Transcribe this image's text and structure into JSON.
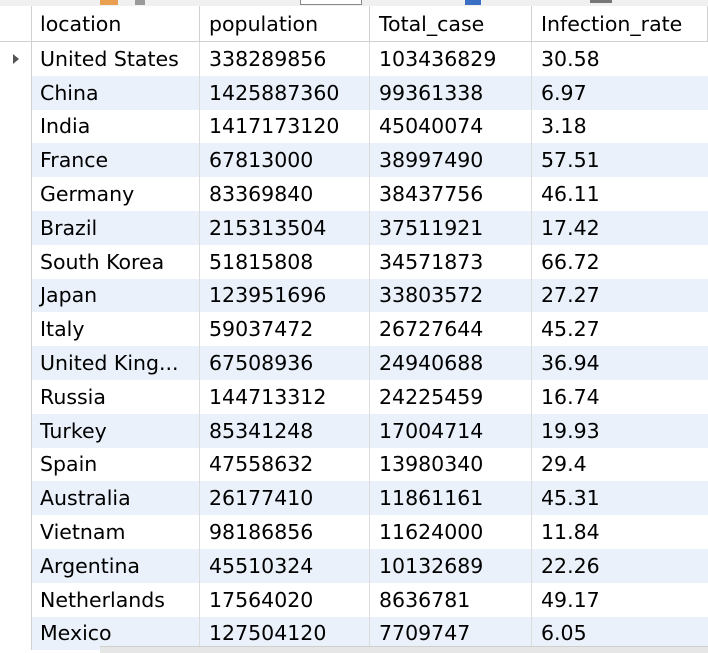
{
  "table": {
    "columns": [
      "location",
      "population",
      "Total_case",
      "Infection_rate"
    ],
    "rows": [
      [
        "United States",
        "338289856",
        "103436829",
        "30.58"
      ],
      [
        "China",
        "1425887360",
        "99361338",
        "6.97"
      ],
      [
        "India",
        "1417173120",
        "45040074",
        "3.18"
      ],
      [
        "France",
        "67813000",
        "38997490",
        "57.51"
      ],
      [
        "Germany",
        "83369840",
        "38437756",
        "46.11"
      ],
      [
        "Brazil",
        "215313504",
        "37511921",
        "17.42"
      ],
      [
        "South Korea",
        "51815808",
        "34571873",
        "66.72"
      ],
      [
        "Japan",
        "123951696",
        "33803572",
        "27.27"
      ],
      [
        "Italy",
        "59037472",
        "26727644",
        "45.27"
      ],
      [
        "United King...",
        "67508936",
        "24940688",
        "36.94"
      ],
      [
        "Russia",
        "144713312",
        "24225459",
        "16.74"
      ],
      [
        "Turkey",
        "85341248",
        "17004714",
        "19.93"
      ],
      [
        "Spain",
        "47558632",
        "13980340",
        "29.4"
      ],
      [
        "Australia",
        "26177410",
        "11861161",
        "45.31"
      ],
      [
        "Vietnam",
        "98186856",
        "11624000",
        "11.84"
      ],
      [
        "Argentina",
        "45510324",
        "10132689",
        "22.26"
      ],
      [
        "Netherlands",
        "17564020",
        "8636781",
        "49.17"
      ],
      [
        "Mexico",
        "127504120",
        "7709747",
        "6.05"
      ]
    ],
    "current_row_indicator": "row-pointer-icon",
    "alt_row_color": "#eaf1fb"
  }
}
